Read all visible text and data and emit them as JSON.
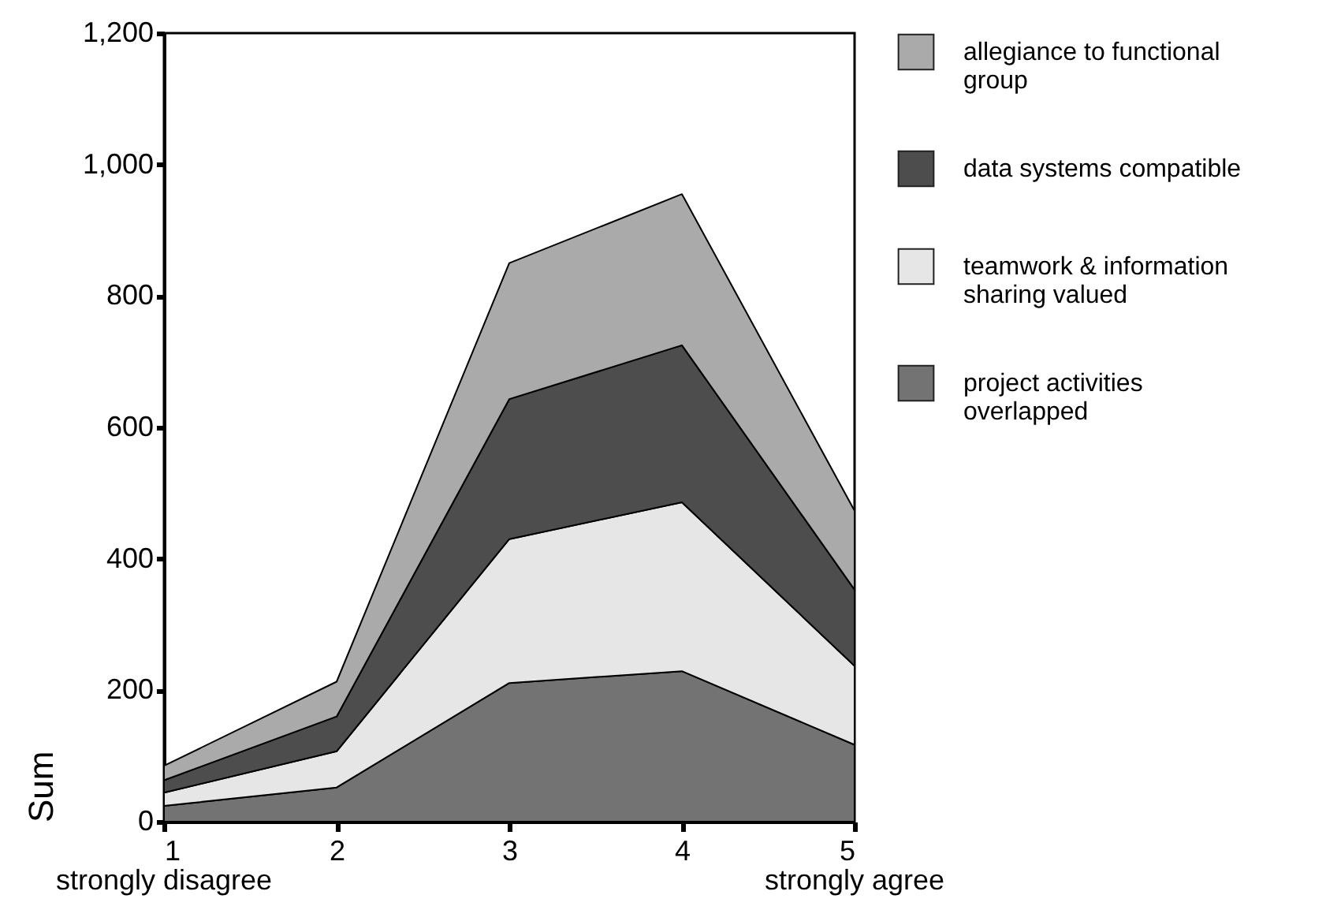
{
  "chart_data": {
    "type": "area",
    "stacked": true,
    "ylabel": "Sum",
    "x": [
      1,
      2,
      3,
      4,
      5
    ],
    "series": [
      {
        "name": "project activities overlapped",
        "color": "#737373",
        "values": [
          24,
          52,
          211,
          229,
          117
        ]
      },
      {
        "name": "teamwork & information sharing valued",
        "color": "#e6e6e6",
        "values": [
          20,
          55,
          219,
          257,
          120
        ]
      },
      {
        "name": "data systems compatible",
        "color": "#4d4d4d",
        "values": [
          19,
          53,
          213,
          239,
          116
        ]
      },
      {
        "name": "allegiance to functional group",
        "color": "#aaaaaa",
        "values": [
          22,
          53,
          207,
          230,
          120
        ]
      }
    ],
    "xlim": [
      1,
      5
    ],
    "xticks": [
      1,
      2,
      3,
      4,
      5
    ],
    "ylim": [
      0,
      1200
    ],
    "yticks": [
      0,
      200,
      400,
      600,
      800,
      {
        "value": 1000,
        "label": "1,000"
      },
      {
        "value": 1200,
        "label": "1,200"
      }
    ],
    "annotations": [
      "strongly disagree",
      "strongly agree"
    ],
    "grid": false,
    "legend": "right"
  }
}
